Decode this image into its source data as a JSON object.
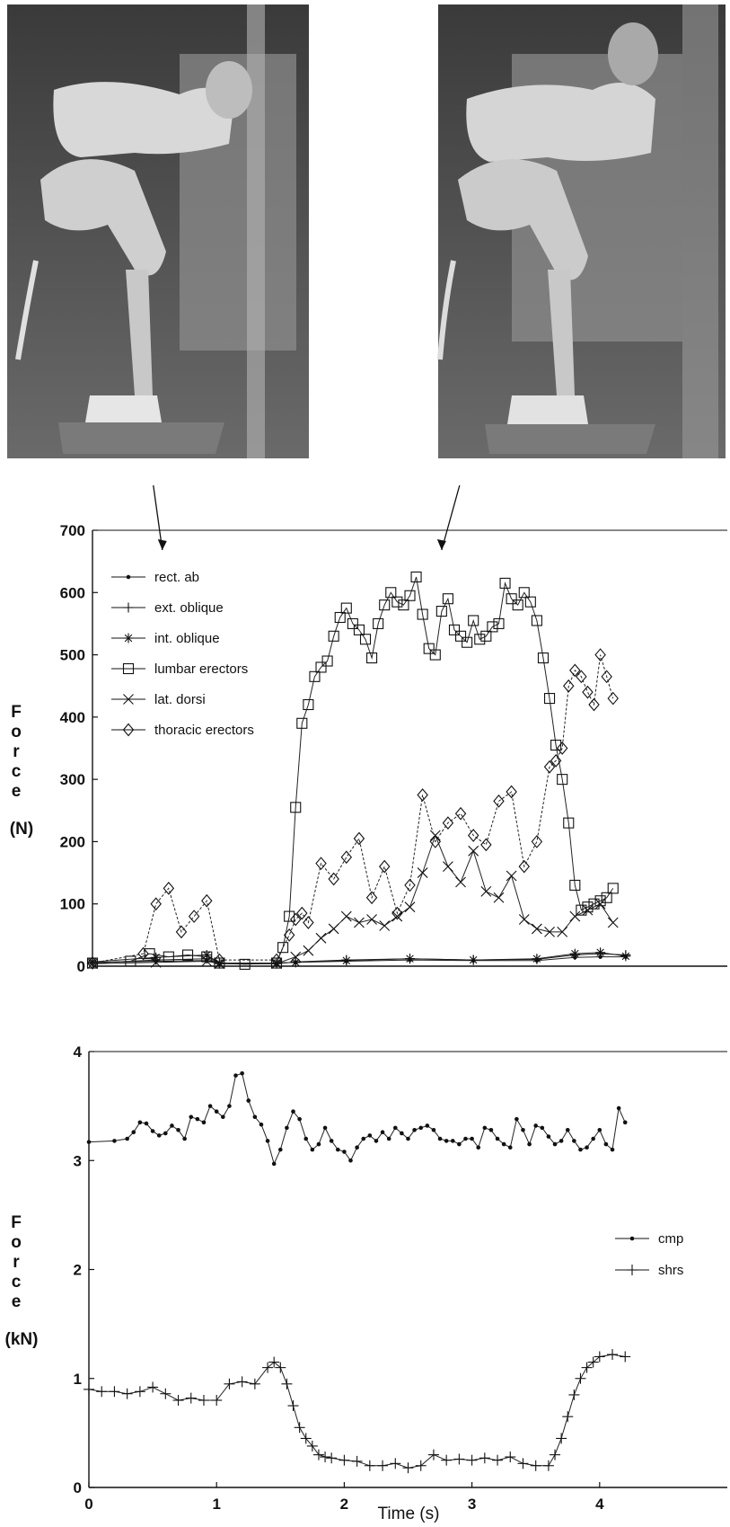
{
  "photos": [
    {
      "alt": "Subject bent forward at start of lift",
      "icon": "photo-lifter-start"
    },
    {
      "alt": "Subject bent forward later in lift",
      "icon": "photo-lifter-later"
    }
  ],
  "chart_data": [
    {
      "type": "line",
      "ylabel": "Force (N)",
      "ylabel_chars": [
        "F",
        "o",
        "r",
        "c",
        "e"
      ],
      "ylabel_unit": "(N)",
      "xlim": [
        0,
        5
      ],
      "ylim": [
        0,
        700
      ],
      "yticks": [
        0,
        100,
        200,
        300,
        400,
        500,
        600,
        700
      ],
      "grid": false,
      "legend_position": "top-left",
      "arrows_at_x": [
        0.55,
        2.75
      ],
      "series": [
        {
          "name": "rect. ab",
          "marker": "dot",
          "dashed": false,
          "x": [
            0,
            0.5,
            0.9,
            1.0,
            1.45,
            1.6,
            2.0,
            2.5,
            3.0,
            3.5,
            3.8,
            4.0,
            4.2
          ],
          "y": [
            6,
            8,
            9,
            5,
            5,
            6,
            8,
            10,
            9,
            9,
            14,
            15,
            15
          ]
        },
        {
          "name": "ext. oblique",
          "marker": "plus",
          "dashed": false,
          "x": [
            0,
            0.5,
            0.9,
            1.0,
            1.45,
            1.6,
            2.0,
            2.5,
            3.0,
            3.5,
            3.8,
            4.0,
            4.2
          ],
          "y": [
            5,
            10,
            12,
            4,
            4,
            7,
            10,
            12,
            10,
            11,
            18,
            20,
            18
          ]
        },
        {
          "name": "int. oblique",
          "marker": "star",
          "dashed": false,
          "x": [
            0,
            0.5,
            0.9,
            1.0,
            1.45,
            1.6,
            2.0,
            2.5,
            3.0,
            3.5,
            3.8,
            4.0,
            4.2
          ],
          "y": [
            7,
            14,
            18,
            5,
            5,
            6,
            9,
            12,
            10,
            12,
            20,
            22,
            16
          ]
        },
        {
          "name": "lumbar erectors",
          "marker": "square",
          "dashed": false,
          "x": [
            0,
            0.3,
            0.45,
            0.6,
            0.75,
            0.9,
            1.0,
            1.2,
            1.45,
            1.5,
            1.55,
            1.6,
            1.65,
            1.7,
            1.75,
            1.8,
            1.85,
            1.9,
            1.95,
            2.0,
            2.05,
            2.1,
            2.15,
            2.2,
            2.25,
            2.3,
            2.35,
            2.4,
            2.45,
            2.5,
            2.55,
            2.6,
            2.65,
            2.7,
            2.75,
            2.8,
            2.85,
            2.9,
            2.95,
            3.0,
            3.05,
            3.1,
            3.15,
            3.2,
            3.25,
            3.3,
            3.35,
            3.4,
            3.45,
            3.5,
            3.55,
            3.6,
            3.65,
            3.7,
            3.75,
            3.8,
            3.85,
            3.9,
            3.95,
            4.0,
            4.05,
            4.1
          ],
          "y": [
            5,
            8,
            20,
            15,
            18,
            15,
            5,
            3,
            5,
            30,
            80,
            255,
            390,
            420,
            465,
            480,
            490,
            530,
            560,
            575,
            550,
            540,
            525,
            495,
            550,
            580,
            600,
            585,
            580,
            595,
            625,
            565,
            510,
            500,
            570,
            590,
            540,
            530,
            520,
            555,
            525,
            530,
            545,
            550,
            615,
            590,
            580,
            600,
            585,
            555,
            495,
            430,
            355,
            300,
            230,
            130,
            90,
            95,
            100,
            105,
            110,
            125
          ]
        },
        {
          "name": "lat. dorsi",
          "marker": "x",
          "dashed": false,
          "x": [
            0,
            0.5,
            0.9,
            1.0,
            1.45,
            1.6,
            1.7,
            1.8,
            1.9,
            2.0,
            2.1,
            2.2,
            2.3,
            2.4,
            2.5,
            2.6,
            2.7,
            2.8,
            2.9,
            3.0,
            3.1,
            3.2,
            3.3,
            3.4,
            3.5,
            3.6,
            3.7,
            3.8,
            3.9,
            4.0,
            4.1
          ],
          "y": [
            4,
            6,
            8,
            4,
            4,
            15,
            25,
            45,
            60,
            80,
            70,
            75,
            65,
            80,
            95,
            150,
            210,
            160,
            135,
            185,
            120,
            110,
            145,
            75,
            60,
            55,
            55,
            80,
            90,
            100,
            70
          ]
        },
        {
          "name": "thoracic erectors",
          "marker": "diamond",
          "dashed": true,
          "x": [
            0,
            0.4,
            0.5,
            0.6,
            0.7,
            0.8,
            0.9,
            1.0,
            1.45,
            1.55,
            1.6,
            1.65,
            1.7,
            1.8,
            1.9,
            2.0,
            2.1,
            2.2,
            2.3,
            2.4,
            2.5,
            2.6,
            2.7,
            2.8,
            2.9,
            3.0,
            3.1,
            3.2,
            3.3,
            3.4,
            3.5,
            3.6,
            3.65,
            3.7,
            3.75,
            3.8,
            3.85,
            3.9,
            3.95,
            4.0,
            4.05,
            4.1
          ],
          "y": [
            5,
            20,
            100,
            125,
            55,
            80,
            105,
            10,
            10,
            50,
            75,
            85,
            70,
            165,
            140,
            175,
            205,
            110,
            160,
            85,
            130,
            275,
            200,
            230,
            245,
            210,
            195,
            265,
            280,
            160,
            200,
            320,
            330,
            350,
            450,
            475,
            465,
            440,
            420,
            500,
            465,
            430
          ]
        }
      ]
    },
    {
      "type": "line",
      "xlabel": "Time (s)",
      "ylabel": "Force (kN)",
      "ylabel_chars": [
        "F",
        "o",
        "r",
        "c",
        "e"
      ],
      "ylabel_unit": "(kN)",
      "xlim": [
        0,
        5
      ],
      "ylim": [
        0,
        4
      ],
      "xticks": [
        0,
        1,
        2,
        3,
        4
      ],
      "yticks": [
        0,
        1,
        2,
        3,
        4
      ],
      "grid": false,
      "legend_position": "center-right",
      "series": [
        {
          "name": "cmp",
          "marker": "dot",
          "x": [
            0,
            0.2,
            0.3,
            0.35,
            0.4,
            0.45,
            0.5,
            0.55,
            0.6,
            0.65,
            0.7,
            0.75,
            0.8,
            0.85,
            0.9,
            0.95,
            1.0,
            1.05,
            1.1,
            1.15,
            1.2,
            1.25,
            1.3,
            1.35,
            1.4,
            1.45,
            1.5,
            1.55,
            1.6,
            1.65,
            1.7,
            1.75,
            1.8,
            1.85,
            1.9,
            1.95,
            2.0,
            2.05,
            2.1,
            2.15,
            2.2,
            2.25,
            2.3,
            2.35,
            2.4,
            2.45,
            2.5,
            2.55,
            2.6,
            2.65,
            2.7,
            2.75,
            2.8,
            2.85,
            2.9,
            2.95,
            3.0,
            3.05,
            3.1,
            3.15,
            3.2,
            3.25,
            3.3,
            3.35,
            3.4,
            3.45,
            3.5,
            3.55,
            3.6,
            3.65,
            3.7,
            3.75,
            3.8,
            3.85,
            3.9,
            3.95,
            4.0,
            4.05,
            4.1,
            4.15,
            4.2
          ],
          "y": [
            3.17,
            3.18,
            3.2,
            3.26,
            3.35,
            3.34,
            3.27,
            3.23,
            3.25,
            3.32,
            3.28,
            3.2,
            3.4,
            3.38,
            3.35,
            3.5,
            3.45,
            3.4,
            3.5,
            3.78,
            3.8,
            3.55,
            3.4,
            3.33,
            3.18,
            2.97,
            3.1,
            3.3,
            3.45,
            3.38,
            3.2,
            3.1,
            3.15,
            3.3,
            3.18,
            3.1,
            3.08,
            3.0,
            3.12,
            3.2,
            3.23,
            3.18,
            3.26,
            3.2,
            3.3,
            3.25,
            3.2,
            3.28,
            3.3,
            3.32,
            3.28,
            3.2,
            3.18,
            3.18,
            3.15,
            3.2,
            3.2,
            3.12,
            3.3,
            3.28,
            3.2,
            3.15,
            3.12,
            3.38,
            3.28,
            3.15,
            3.32,
            3.3,
            3.22,
            3.15,
            3.18,
            3.28,
            3.18,
            3.1,
            3.12,
            3.2,
            3.28,
            3.15,
            3.1,
            3.48,
            3.35
          ]
        },
        {
          "name": "shrs",
          "marker": "plus",
          "x": [
            0,
            0.1,
            0.2,
            0.3,
            0.4,
            0.5,
            0.6,
            0.7,
            0.8,
            0.9,
            1.0,
            1.1,
            1.2,
            1.3,
            1.4,
            1.45,
            1.5,
            1.55,
            1.6,
            1.65,
            1.7,
            1.75,
            1.8,
            1.85,
            1.9,
            2.0,
            2.1,
            2.2,
            2.3,
            2.4,
            2.5,
            2.6,
            2.7,
            2.8,
            2.9,
            3.0,
            3.1,
            3.2,
            3.3,
            3.4,
            3.5,
            3.6,
            3.65,
            3.7,
            3.75,
            3.8,
            3.85,
            3.9,
            3.95,
            4.0,
            4.1,
            4.2
          ],
          "y": [
            0.9,
            0.88,
            0.88,
            0.86,
            0.88,
            0.92,
            0.86,
            0.8,
            0.82,
            0.8,
            0.8,
            0.95,
            0.97,
            0.95,
            1.1,
            1.15,
            1.1,
            0.95,
            0.75,
            0.55,
            0.45,
            0.38,
            0.3,
            0.28,
            0.27,
            0.25,
            0.24,
            0.2,
            0.2,
            0.22,
            0.18,
            0.2,
            0.3,
            0.25,
            0.26,
            0.25,
            0.27,
            0.25,
            0.28,
            0.22,
            0.2,
            0.2,
            0.3,
            0.45,
            0.65,
            0.85,
            1.0,
            1.1,
            1.15,
            1.2,
            1.22,
            1.2
          ]
        }
      ]
    }
  ]
}
